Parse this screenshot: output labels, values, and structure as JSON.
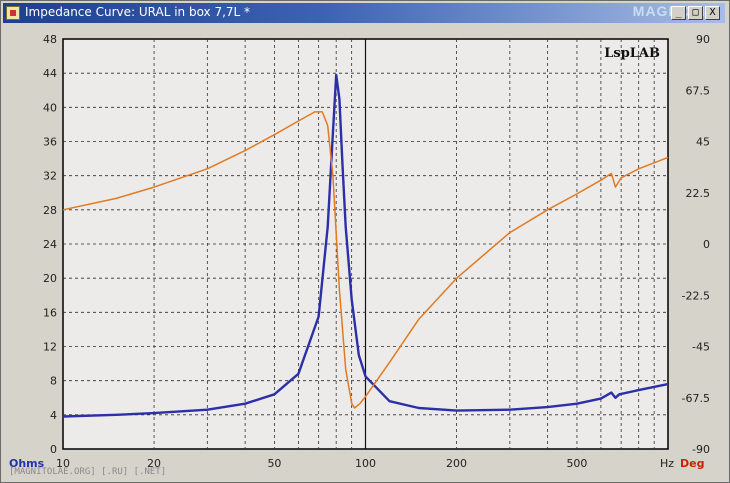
{
  "window": {
    "title": "Impedance Curve: URAL in box 7,7L *",
    "logo": "MAGNOLIA",
    "min_label": "_",
    "max_label": "□",
    "close_label": "X"
  },
  "footer": "[MAGNITOLAE.ORG] [.RU] [.NET]",
  "chart_data": {
    "type": "line",
    "brand_label": "LspLAB",
    "x_unit_label": "Hz",
    "y_left_unit_label": "Ohms",
    "y_right_unit_label": "Deg",
    "x_scale": "log",
    "xlim": [
      10,
      1000
    ],
    "x_ticks": [
      10,
      20,
      50,
      100,
      200,
      500
    ],
    "x_tick_labels": [
      "10",
      "20",
      "50",
      "100",
      "200",
      "500"
    ],
    "ylim_left": [
      0,
      48
    ],
    "y_left_ticks": [
      "0",
      "4",
      "8",
      "12",
      "16",
      "20",
      "24",
      "28",
      "32",
      "36",
      "40",
      "44",
      "48"
    ],
    "ylim_right": [
      -90,
      90
    ],
    "y_right_ticks": [
      "-90",
      "-67.5",
      "-45",
      "-22.5",
      "0",
      "22.5",
      "45",
      "67.5",
      "90"
    ],
    "grid": true,
    "colors": {
      "impedance": "#2c2fa8",
      "phase": "#e07b22",
      "grid": "#2e2e2e",
      "plot_bg": "#ecebe9",
      "axis_right_label": "#cc2200",
      "axis_left_label": "#2233aa"
    },
    "series": [
      {
        "key": "impedance",
        "axis": "left",
        "x": [
          10,
          15,
          20,
          30,
          40,
          50,
          60,
          70,
          75,
          78,
          80,
          82,
          84,
          86,
          90,
          95,
          100,
          120,
          150,
          200,
          300,
          400,
          500,
          600,
          650,
          670,
          690,
          800,
          1000
        ],
        "values": [
          3.8,
          4.0,
          4.2,
          4.6,
          5.3,
          6.4,
          8.8,
          15.5,
          26.0,
          37.0,
          43.8,
          41.0,
          33.0,
          26.0,
          17.5,
          11.0,
          8.5,
          5.6,
          4.8,
          4.5,
          4.6,
          4.9,
          5.3,
          5.9,
          6.6,
          6.0,
          6.4,
          6.9,
          7.6
        ]
      },
      {
        "key": "phase",
        "axis": "right",
        "x": [
          10,
          15,
          20,
          30,
          40,
          50,
          60,
          68,
          72,
          75,
          78,
          82,
          86,
          90,
          92,
          96,
          100,
          120,
          150,
          200,
          300,
          400,
          500,
          600,
          650,
          660,
          670,
          700,
          800,
          1000
        ],
        "values": [
          15,
          20,
          25,
          33,
          41,
          48,
          54,
          58,
          58,
          52,
          30,
          -20,
          -55,
          -70,
          -72,
          -70,
          -67,
          -52,
          -33,
          -15,
          5,
          15,
          22,
          28,
          31,
          28,
          25,
          29,
          33,
          38
        ]
      }
    ]
  }
}
